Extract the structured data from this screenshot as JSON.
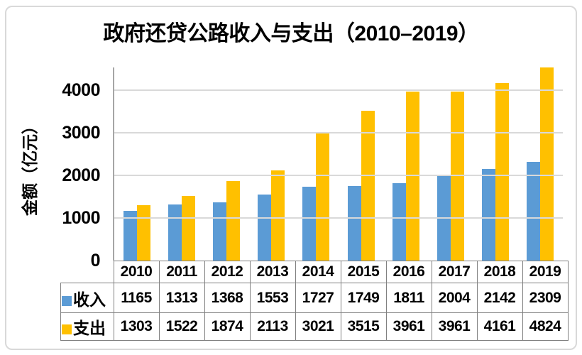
{
  "title": "政府还贷公路收入与支出（2010–2019）",
  "y_axis_title": "金额（亿元）",
  "colors": {
    "income": "#5B9BD5",
    "expense": "#FFC000",
    "gridline": "#D9D9D9",
    "axis_line": "#A6A6A6",
    "table_border": "#808080",
    "frame_border": "#D9D9D9"
  },
  "chart_data": {
    "type": "bar",
    "title": "政府还贷公路收入与支出（2010–2019）",
    "ylabel": "金额（亿元）",
    "xlabel": "",
    "categories": [
      "2010",
      "2011",
      "2012",
      "2013",
      "2014",
      "2015",
      "2016",
      "2017",
      "2018",
      "2019"
    ],
    "series": [
      {
        "name": "收入",
        "color": "#5B9BD5",
        "values": [
          1165,
          1313,
          1368,
          1553,
          1727,
          1749,
          1811,
          2004,
          2142,
          2309
        ]
      },
      {
        "name": "支出",
        "color": "#FFC000",
        "values": [
          1303,
          1522,
          1874,
          2113,
          3021,
          3515,
          3961,
          3961,
          4161,
          4824
        ]
      }
    ],
    "y_ticks": [
      0,
      1000,
      2000,
      3000,
      4000
    ],
    "ylim": [
      0,
      4533
    ],
    "grid": true,
    "legend_position": "data-table-left",
    "data_table_shown": true
  }
}
